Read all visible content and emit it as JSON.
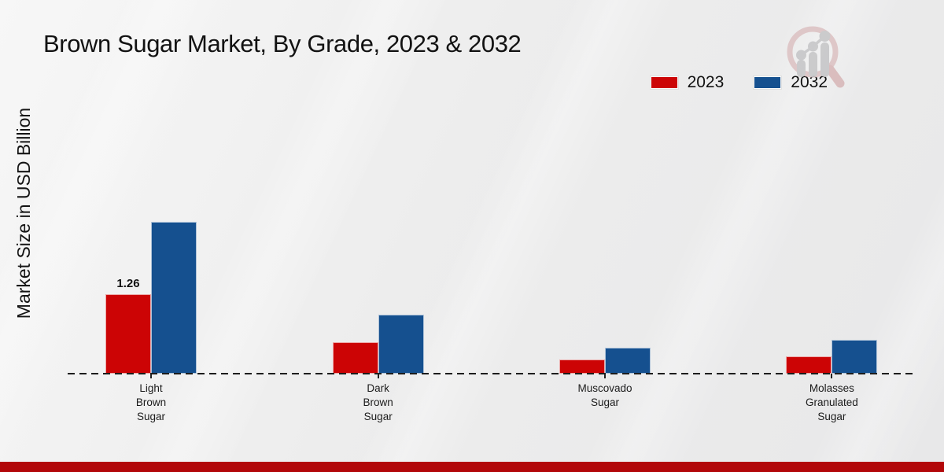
{
  "page_title": "Brown Sugar Market, By Grade, 2023 & 2032",
  "chart_data": {
    "type": "bar",
    "title": "Brown Sugar Market, By Grade, 2023 & 2032",
    "xlabel": "",
    "ylabel": "Market Size in USD Billion",
    "categories": [
      "Light Brown Sugar",
      "Dark Brown Sugar",
      "Muscovado Sugar",
      "Molasses Granulated Sugar"
    ],
    "category_label_lines": [
      [
        "Light",
        "Brown",
        "Sugar"
      ],
      [
        "Dark",
        "Brown",
        "Sugar"
      ],
      [
        "Muscovado",
        "Sugar"
      ],
      [
        "Molasses",
        "Granulated",
        "Sugar"
      ]
    ],
    "series": [
      {
        "name": "2023",
        "color": "#cc0405",
        "values": [
          1.26,
          0.5,
          0.22,
          0.27
        ]
      },
      {
        "name": "2032",
        "color": "#15508f",
        "values": [
          2.41,
          0.94,
          0.41,
          0.53
        ]
      }
    ],
    "data_labels": [
      {
        "series_index": 0,
        "category_index": 0,
        "text": "1.26"
      }
    ],
    "ylim": [
      0,
      3
    ],
    "grid": false,
    "y_axis_ticks_visible": false,
    "axis_style": "dashed-baseline-only",
    "legend_position": "top-right"
  },
  "colors": {
    "red_2023": "#cc0405",
    "blue_2032": "#15508f",
    "footer_band": "#b20709",
    "background": "#ededed",
    "text": "#121212"
  },
  "branding": {
    "logo_name": "magnifier-bar-chart-logo"
  }
}
